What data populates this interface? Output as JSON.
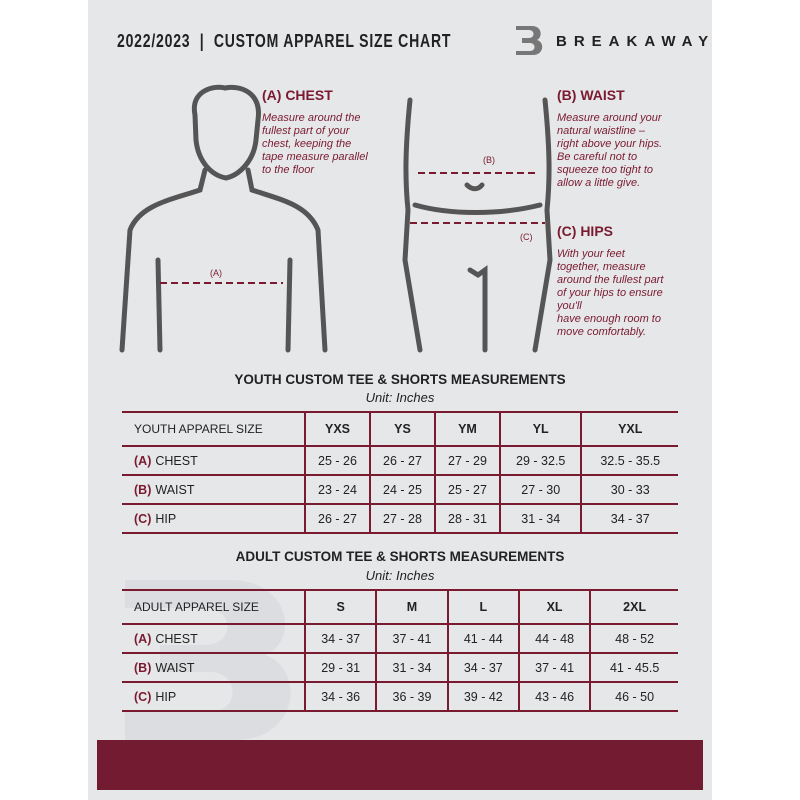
{
  "header": {
    "title": "2022/2023  |  CUSTOM APPAREL SIZE CHART",
    "brand": "BREAKAWAY"
  },
  "measures": {
    "chest": {
      "label": "(A) CHEST",
      "marker": "(A)",
      "lines": [
        "Measure around the",
        "fullest part of your",
        "chest, keeping the",
        "tape measure parallel",
        "to the floor"
      ]
    },
    "waist": {
      "label": "(B) WAIST",
      "marker": "(B)",
      "lines": [
        "Measure around your",
        "natural waistline –",
        "right above your hips.",
        "Be careful not to",
        "squeeze too tight to",
        "allow a little give."
      ]
    },
    "hips": {
      "label": "(C) HIPS",
      "marker": "(C)",
      "lines": [
        "With your feet",
        "together, measure",
        "around the fullest part",
        "of your hips to ensure",
        "you'll",
        "have enough room to",
        "move comfortably."
      ]
    }
  },
  "youth": {
    "title": "YOUTH CUSTOM TEE & SHORTS MEASUREMENTS",
    "unit": "Unit: Inches",
    "header": [
      "YOUTH APPAREL SIZE",
      "YXS",
      "YS",
      "YM",
      "YL",
      "YXL"
    ],
    "rows": [
      {
        "tag": "(A)",
        "name": "CHEST",
        "values": [
          "25 - 26",
          "26 - 27",
          "27 - 29",
          "29 - 32.5",
          "32.5 - 35.5"
        ]
      },
      {
        "tag": "(B)",
        "name": "WAIST",
        "values": [
          "23 - 24",
          "24 - 25",
          "25 - 27",
          "27 - 30",
          "30 - 33"
        ]
      },
      {
        "tag": "(C)",
        "name": "HIP",
        "values": [
          "26 - 27",
          "27 - 28",
          "28 - 31",
          "31 - 34",
          "34 - 37"
        ]
      }
    ]
  },
  "adult": {
    "title": "ADULT CUSTOM TEE & SHORTS MEASUREMENTS",
    "unit": "Unit: Inches",
    "header": [
      "ADULT APPAREL SIZE",
      "S",
      "M",
      "L",
      "XL",
      "2XL"
    ],
    "rows": [
      {
        "tag": "(A)",
        "name": "CHEST",
        "values": [
          "34 - 37",
          "37 - 41",
          "41 - 44",
          "44 - 48",
          "48 - 52"
        ]
      },
      {
        "tag": "(B)",
        "name": "WAIST",
        "values": [
          "29 - 31",
          "31 - 34",
          "34 - 37",
          "37 - 41",
          "41 - 45.5"
        ]
      },
      {
        "tag": "(C)",
        "name": "HIP",
        "values": [
          "34 - 36",
          "36 - 39",
          "39 - 42",
          "43 - 46",
          "46 - 50"
        ]
      }
    ]
  },
  "colors": {
    "accent": "#7a1a30",
    "band": "#731b31",
    "panel": "#e6e7e9"
  }
}
